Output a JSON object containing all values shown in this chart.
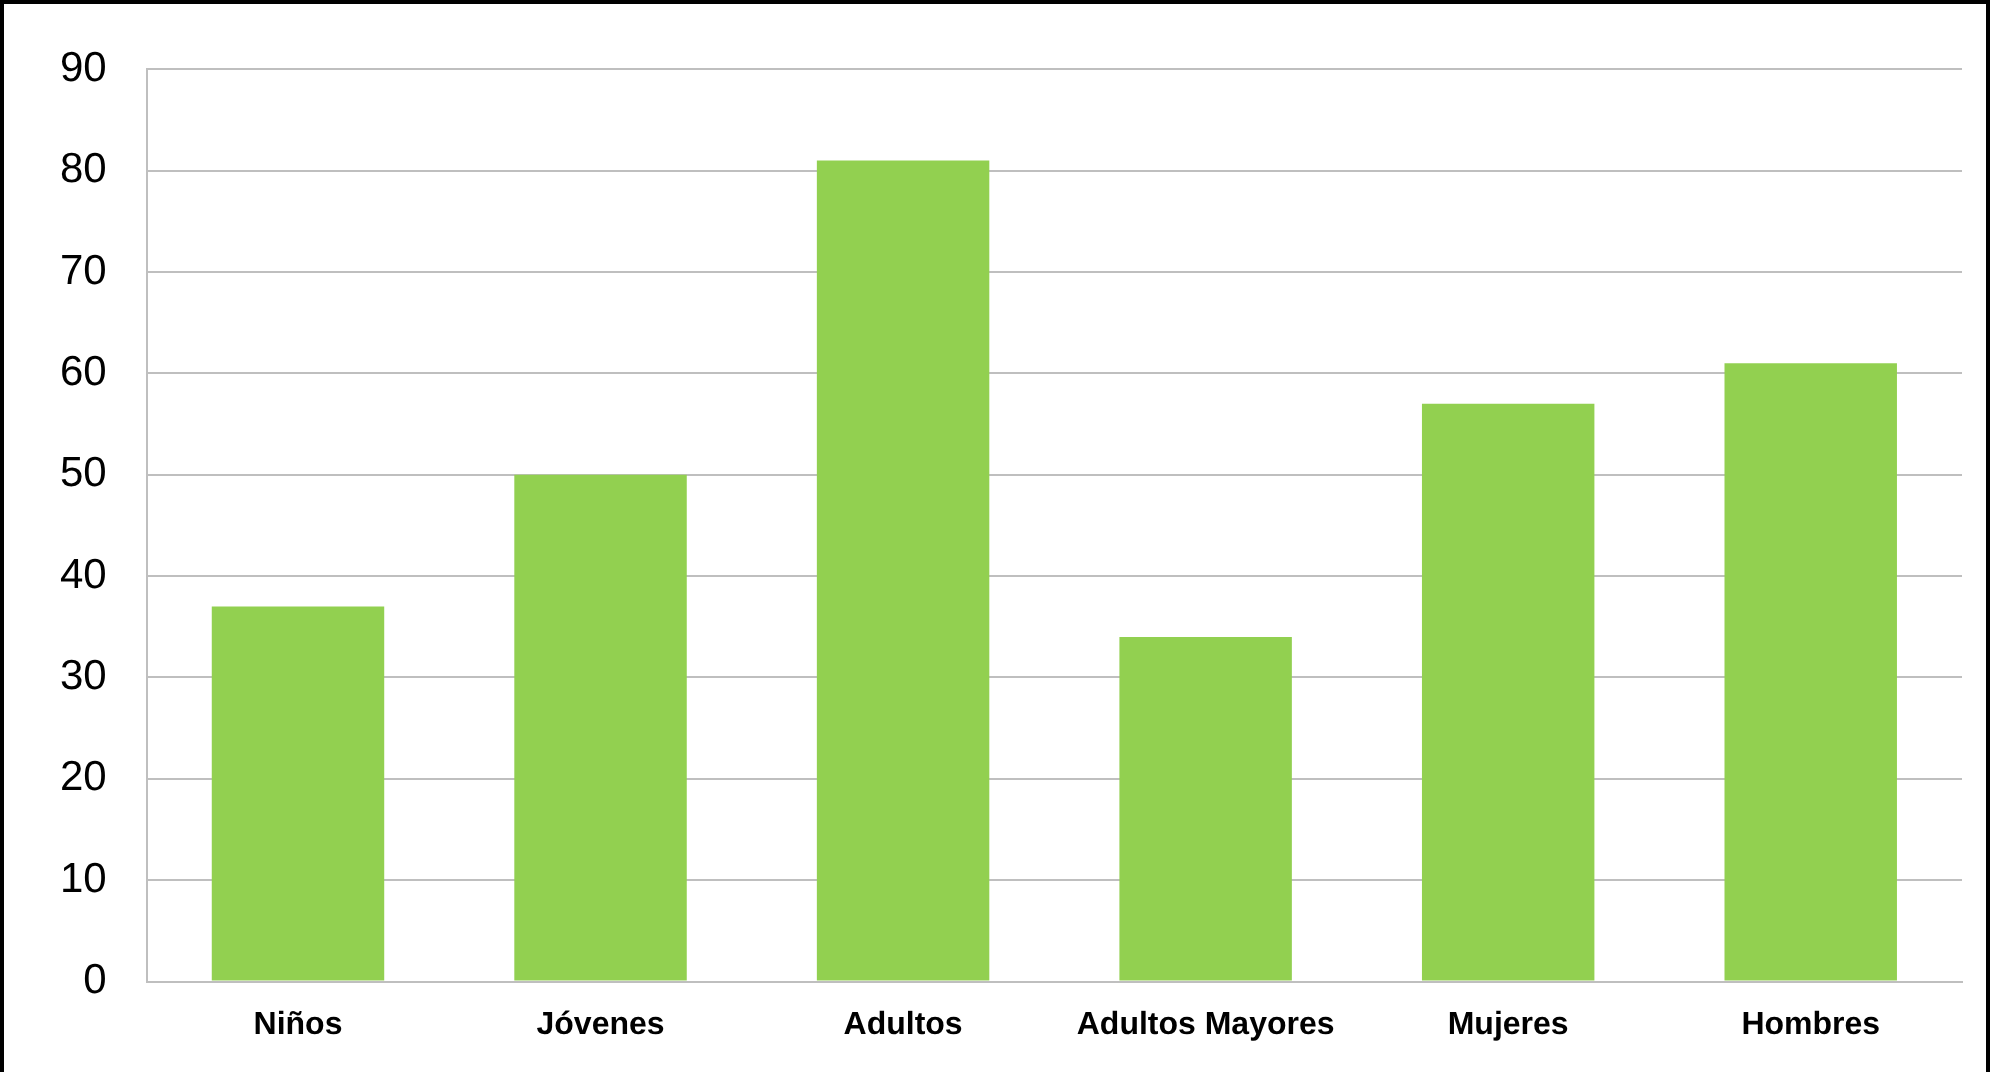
{
  "chart_data": {
    "type": "bar",
    "categories": [
      "Niños",
      "Jóvenes",
      "Adultos",
      "Adultos Mayores",
      "Mujeres",
      "Hombres"
    ],
    "values": [
      37,
      50,
      81,
      34,
      57,
      61
    ],
    "color": "#92d050",
    "ylim": [
      0,
      90
    ],
    "yticks": [
      0,
      10,
      20,
      30,
      40,
      50,
      60,
      70,
      80,
      90
    ],
    "grid": "y",
    "legend": false
  }
}
